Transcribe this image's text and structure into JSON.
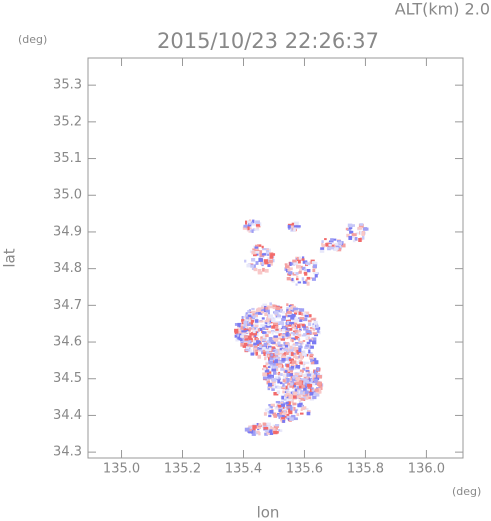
{
  "chart_data": {
    "type": "map",
    "title": "2015/10/23 22:26:37",
    "annotation": "ALT(km) 2.0",
    "x_unit": "(deg)",
    "y_unit": "(deg)",
    "xlabel": "lon",
    "ylabel": "lat",
    "xlim": [
      134.89,
      136.12
    ],
    "ylim": [
      34.284,
      35.374
    ],
    "xticks": [
      {
        "value": 135,
        "label": "135.0"
      },
      135.2,
      135.4,
      135.6,
      135.8,
      {
        "value": 136,
        "label": "136.0"
      }
    ],
    "yticks": [
      34.3,
      34.4,
      34.5,
      34.6,
      34.7,
      34.8,
      34.9,
      {
        "value": 35,
        "label": "35.0"
      },
      35.1,
      35.2,
      35.3
    ]
  }
}
